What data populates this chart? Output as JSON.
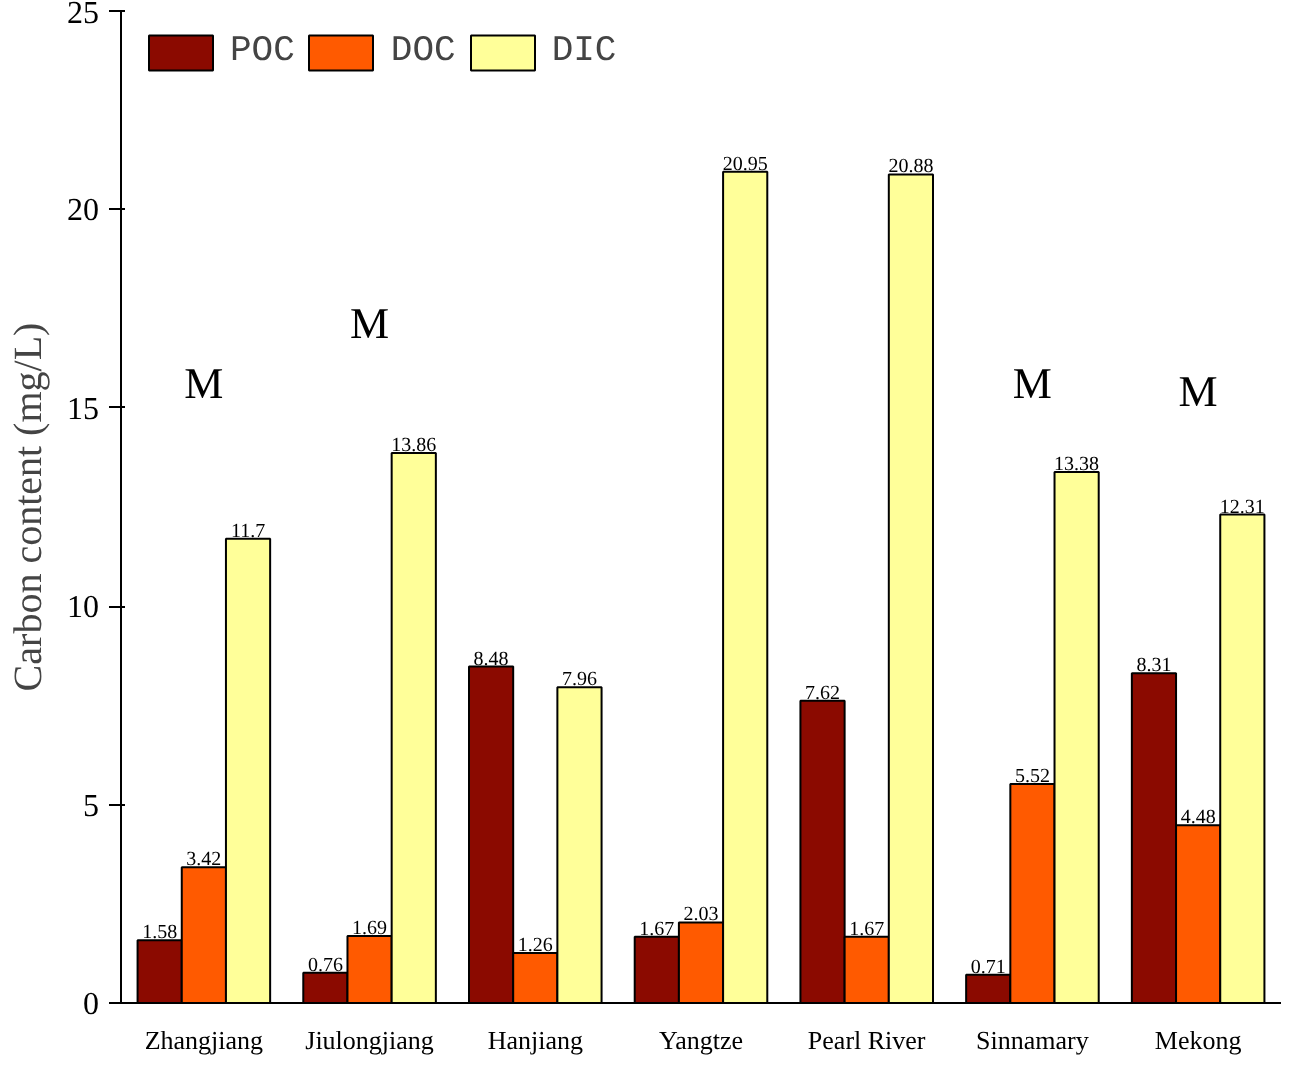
{
  "chart_data": {
    "type": "bar",
    "ylabel": "Carbon content (mg/L)",
    "categories": [
      "Zhangjiang",
      "Jiulongjiang",
      "Hanjiang",
      "Yangtze",
      "Pearl River",
      "Sinnamary",
      "Mekong"
    ],
    "series": [
      {
        "name": "POC",
        "color": "#8b0a00",
        "values": [
          1.58,
          0.76,
          8.48,
          1.67,
          7.62,
          0.71,
          8.31
        ]
      },
      {
        "name": "DOC",
        "color": "#ff5a00",
        "values": [
          3.42,
          1.69,
          1.26,
          2.03,
          1.67,
          5.52,
          4.48
        ]
      },
      {
        "name": "DIC",
        "color": "#ffff99",
        "values": [
          11.7,
          13.86,
          7.96,
          20.95,
          20.88,
          13.38,
          12.31
        ]
      }
    ],
    "ylim": [
      0,
      25
    ],
    "yticks": [
      0,
      5,
      10,
      15,
      20,
      25
    ],
    "data_labels": true,
    "legend": "top left",
    "grid": false,
    "annotations": [
      "M",
      "M",
      "M",
      "M"
    ]
  }
}
